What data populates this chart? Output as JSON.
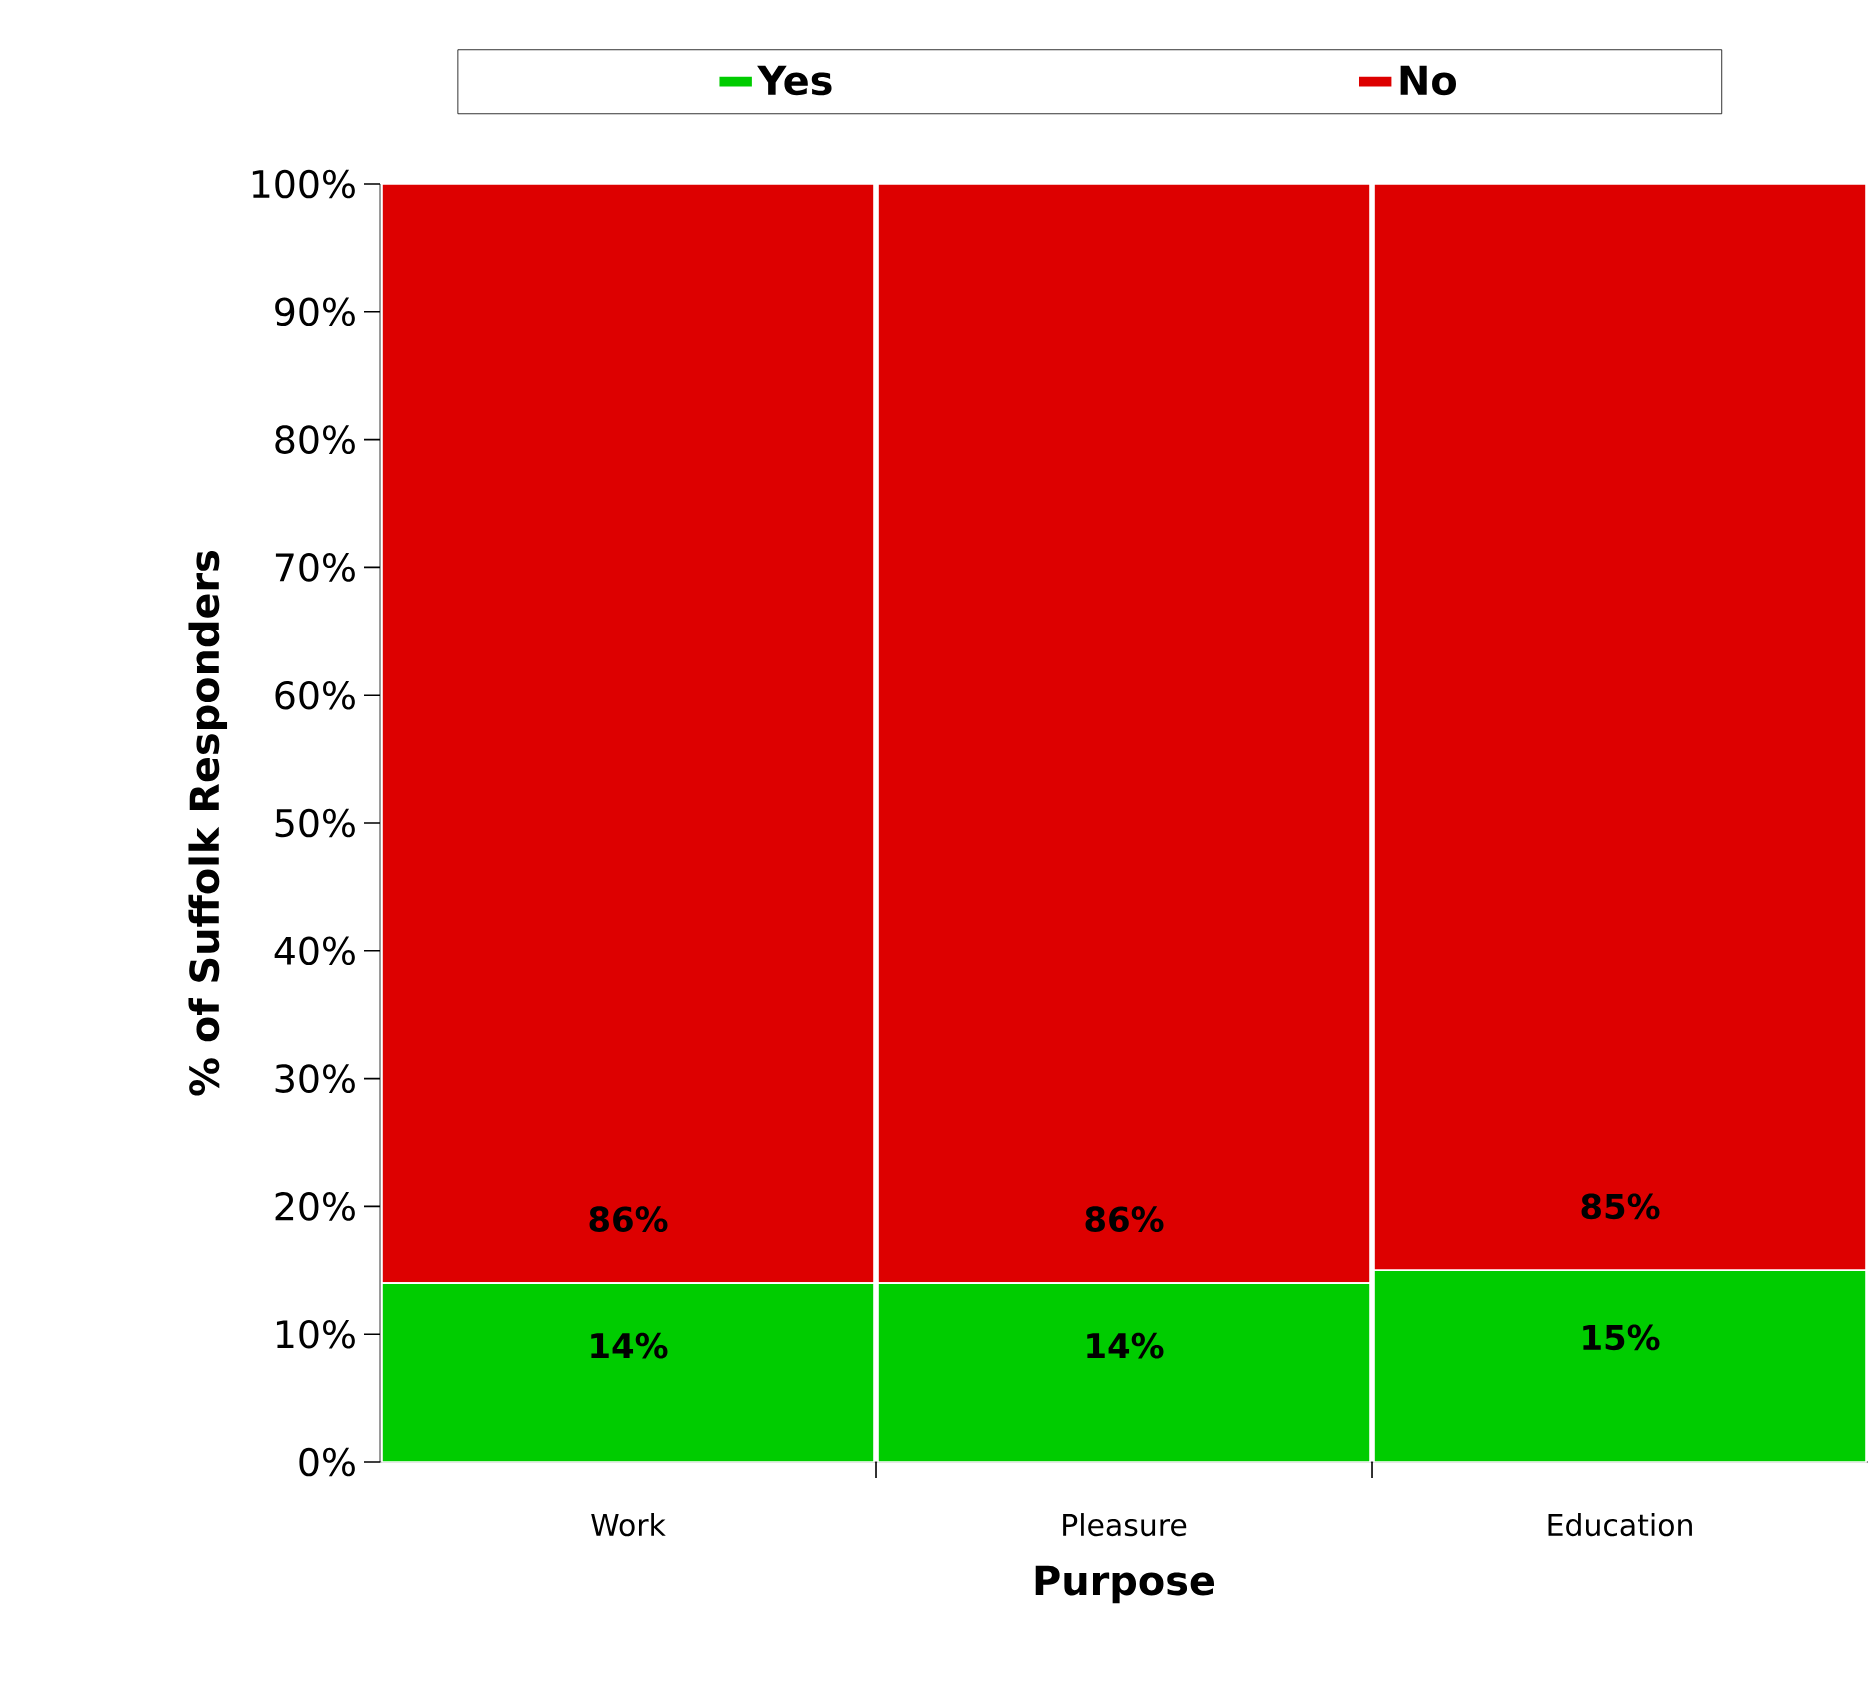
{
  "chart_data": {
    "type": "bar",
    "stacked": true,
    "xlabel": "Purpose",
    "ylabel": "% of Suffolk Responders",
    "categories": [
      "Work",
      "Pleasure",
      "Education"
    ],
    "series": [
      {
        "name": "Yes",
        "color": "#00cc00",
        "values": [
          14,
          14,
          15
        ],
        "value_labels": [
          "14%",
          "14%",
          "15%"
        ]
      },
      {
        "name": "No",
        "color": "#dd0000",
        "values": [
          86,
          86,
          85
        ],
        "value_labels": [
          "86%",
          "86%",
          "85%"
        ]
      }
    ],
    "ylim": [
      0,
      100
    ],
    "yticks": [
      {
        "value": 0,
        "label": "0%"
      },
      {
        "value": 10,
        "label": "10%"
      },
      {
        "value": 20,
        "label": "20%"
      },
      {
        "value": 30,
        "label": "30%"
      },
      {
        "value": 40,
        "label": "40%"
      },
      {
        "value": 50,
        "label": "50%"
      },
      {
        "value": 60,
        "label": "60%"
      },
      {
        "value": 70,
        "label": "70%"
      },
      {
        "value": 80,
        "label": "80%"
      },
      {
        "value": 90,
        "label": "90%"
      },
      {
        "value": 100,
        "label": "100%"
      }
    ],
    "legend": "top"
  }
}
